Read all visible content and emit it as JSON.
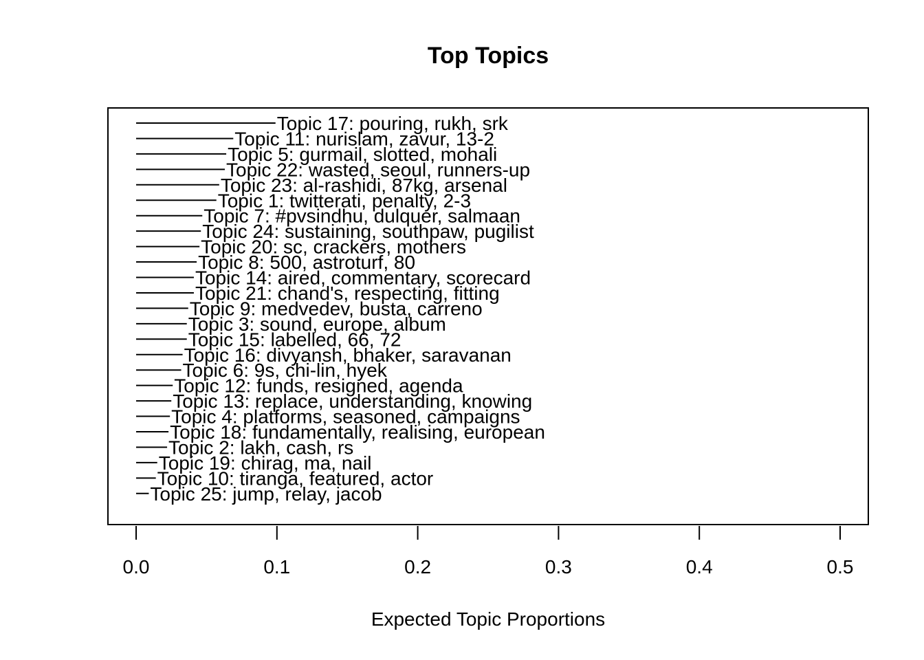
{
  "chart_data": {
    "type": "bar",
    "orientation": "horizontal",
    "title": "Top Topics",
    "xlabel": "Expected Topic Proportions",
    "ylabel": "",
    "xlim": [
      0,
      0.5
    ],
    "xticks": [
      "0.0",
      "0.1",
      "0.2",
      "0.3",
      "0.4",
      "0.5"
    ],
    "grid": false,
    "legend": "none",
    "topics": [
      {
        "label": "Topic 17: pouring, rukh, srk",
        "value": 0.099
      },
      {
        "label": "Topic 11: nurislam, zavur, 13-2",
        "value": 0.069
      },
      {
        "label": "Topic 5: gurmail, slotted, mohali",
        "value": 0.064
      },
      {
        "label": "Topic 22: wasted, seoul, runners-up",
        "value": 0.063
      },
      {
        "label": "Topic 23: al-rashidi, 87kg, arsenal",
        "value": 0.059
      },
      {
        "label": "Topic 1: twitterati, penalty, 2-3",
        "value": 0.057
      },
      {
        "label": "Topic 7: #pvsindhu, dulquer, salmaan",
        "value": 0.047
      },
      {
        "label": "Topic 24: sustaining, southpaw, pugilist",
        "value": 0.046
      },
      {
        "label": "Topic 20: sc, crackers, mothers",
        "value": 0.045
      },
      {
        "label": "Topic 8: 500, astroturf, 80",
        "value": 0.043
      },
      {
        "label": "Topic 14: aired, commentary, scorecard",
        "value": 0.041
      },
      {
        "label": "Topic 21: chand's, respecting, fitting",
        "value": 0.041
      },
      {
        "label": "Topic 9: medvedev, busta, carreno",
        "value": 0.037
      },
      {
        "label": "Topic 3: sound, europe, album",
        "value": 0.036
      },
      {
        "label": "Topic 15: labelled, 66, 72",
        "value": 0.036
      },
      {
        "label": "Topic 16: divyansh, bhaker, saravanan",
        "value": 0.033
      },
      {
        "label": "Topic 6: 9s, chi-lin, hyek",
        "value": 0.032
      },
      {
        "label": "Topic 12: funds, resigned, agenda",
        "value": 0.026
      },
      {
        "label": "Topic 13: replace, understanding, knowing",
        "value": 0.025
      },
      {
        "label": "Topic 4: platforms, seasoned, campaigns",
        "value": 0.024
      },
      {
        "label": "Topic 18: fundamentally, realising, european",
        "value": 0.023
      },
      {
        "label": "Topic 2: lakh, cash, rs",
        "value": 0.022
      },
      {
        "label": "Topic 19: chirag, ma, nail",
        "value": 0.015
      },
      {
        "label": "Topic 10: tiranga, featured, actor",
        "value": 0.014
      },
      {
        "label": "Topic 25: jump, relay, jacob",
        "value": 0.009
      }
    ]
  }
}
